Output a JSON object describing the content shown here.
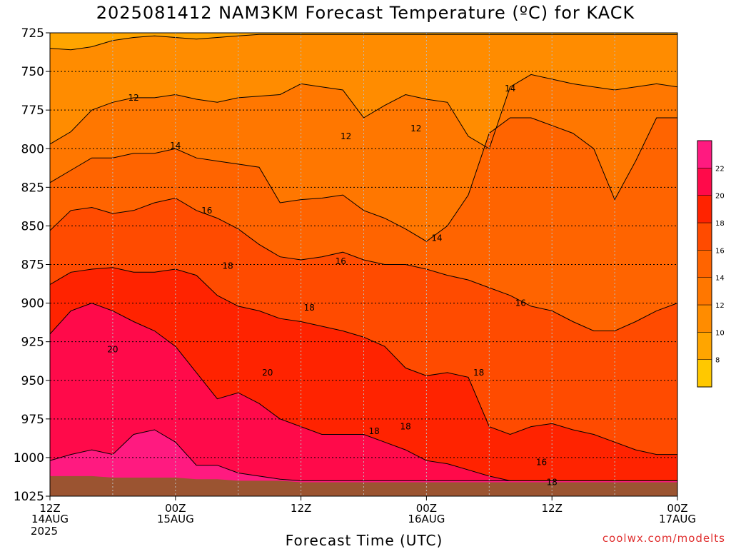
{
  "title": "2025081412 NAM3KM Forecast Temperature (ºC) for KACK",
  "credit": "coolwx.com/modelts",
  "colors": {
    "c6": "#ffc800",
    "c8": "#ffa500",
    "c10": "#ff8c00",
    "c12": "#ff7700",
    "c14": "#ff6400",
    "c16": "#ff4b00",
    "c18": "#ff2300",
    "c20": "#ff0a4a",
    "c22": "#ff1a80",
    "ground": "#9b5431"
  },
  "chart_data": {
    "type": "heatmap",
    "title": "2025081412 NAM3KM Forecast Temperature (ºC) for KACK",
    "xlabel": "Forecast Time (UTC)",
    "ylabel": "",
    "x_hours": [
      0,
      60
    ],
    "x_ticks": [
      {
        "hour": 0,
        "label": "12Z",
        "sub": "14AUG",
        "sub2": "2025"
      },
      {
        "hour": 12,
        "label": "00Z",
        "sub": "15AUG",
        "sub2": ""
      },
      {
        "hour": 24,
        "label": "12Z",
        "sub": "",
        "sub2": ""
      },
      {
        "hour": 36,
        "label": "00Z",
        "sub": "16AUG",
        "sub2": ""
      },
      {
        "hour": 48,
        "label": "12Z",
        "sub": "",
        "sub2": ""
      },
      {
        "hour": 60,
        "label": "00Z",
        "sub": "17AUG",
        "sub2": ""
      }
    ],
    "y_pressure_range": [
      725,
      1025
    ],
    "y_ticks": [
      725,
      750,
      775,
      800,
      825,
      850,
      875,
      900,
      925,
      950,
      975,
      1000,
      1025
    ],
    "colorbar": {
      "min": 6,
      "max": 24,
      "ticks": [
        8,
        10,
        12,
        14,
        16,
        18,
        20,
        22
      ]
    },
    "bands": [
      {
        "temp": 10,
        "top": [
          735,
          736,
          734,
          730,
          728,
          727,
          728,
          729,
          728,
          727,
          726,
          726,
          726,
          726,
          726,
          726,
          726,
          726,
          726,
          726,
          726,
          726,
          726,
          726,
          726,
          726,
          726,
          726,
          726,
          726,
          726
        ]
      },
      {
        "temp": 12,
        "top": [
          797,
          789,
          775,
          770,
          767,
          767,
          765,
          768,
          770,
          767,
          766,
          765,
          758,
          760,
          762,
          780,
          772,
          765,
          768,
          770,
          792,
          800,
          760,
          752,
          755,
          758,
          760,
          762,
          760,
          758,
          760
        ]
      },
      {
        "temp": 14,
        "top": [
          822,
          814,
          806,
          806,
          803,
          803,
          800,
          806,
          808,
          810,
          812,
          835,
          833,
          832,
          830,
          840,
          845,
          852,
          860,
          850,
          830,
          790,
          780,
          780,
          785,
          790,
          800,
          833,
          808,
          780,
          780
        ]
      },
      {
        "temp": 16,
        "top": [
          853,
          840,
          838,
          842,
          840,
          835,
          832,
          840,
          845,
          852,
          862,
          870,
          872,
          870,
          867,
          872,
          875,
          875,
          878,
          882,
          885,
          890,
          895,
          902,
          905,
          912,
          918,
          918,
          912,
          905,
          900
        ]
      },
      {
        "temp": 18,
        "top": [
          888,
          880,
          878,
          877,
          880,
          880,
          878,
          882,
          895,
          902,
          905,
          910,
          912,
          915,
          918,
          922,
          928,
          942,
          947,
          945,
          948,
          980,
          985,
          980,
          978,
          982,
          985,
          990,
          995,
          998,
          998
        ]
      },
      {
        "temp": 20,
        "top": [
          920,
          905,
          900,
          905,
          912,
          918,
          928,
          945,
          962,
          958,
          965,
          975,
          980,
          985,
          985,
          985,
          990,
          995,
          1002,
          1004,
          1008,
          1012,
          1015,
          1015,
          1015,
          1015,
          1015,
          1015,
          1015,
          1015,
          1015
        ]
      },
      {
        "temp": 22,
        "top": [
          1002,
          998,
          995,
          998,
          985,
          982,
          990,
          1005,
          1005,
          1010,
          1012,
          1014,
          1015,
          1015,
          1015,
          1015,
          1015,
          1015,
          1015,
          1015,
          1015,
          1015,
          1015,
          1015,
          1015,
          1015,
          1015,
          1015,
          1015,
          1015,
          1015
        ]
      }
    ],
    "ground_pressure": [
      1012,
      1012,
      1012,
      1013,
      1013,
      1013,
      1013,
      1014,
      1014,
      1015,
      1015,
      1015,
      1016,
      1016,
      1016,
      1016,
      1016,
      1016,
      1016,
      1016,
      1016,
      1016,
      1016,
      1016,
      1016,
      1016,
      1016,
      1016,
      1016,
      1016,
      1016
    ],
    "contour_labels": [
      {
        "text": "12",
        "hour": 8.0,
        "p": 767
      },
      {
        "text": "12",
        "hour": 28.3,
        "p": 792
      },
      {
        "text": "12",
        "hour": 35.0,
        "p": 787
      },
      {
        "text": "14",
        "hour": 12.0,
        "p": 798
      },
      {
        "text": "14",
        "hour": 44.0,
        "p": 761
      },
      {
        "text": "14",
        "hour": 37.0,
        "p": 858
      },
      {
        "text": "16",
        "hour": 15.0,
        "p": 840
      },
      {
        "text": "16",
        "hour": 27.8,
        "p": 873
      },
      {
        "text": "16",
        "hour": 45.0,
        "p": 900
      },
      {
        "text": "16",
        "hour": 47.0,
        "p": 1003
      },
      {
        "text": "18",
        "hour": 17.0,
        "p": 876
      },
      {
        "text": "18",
        "hour": 24.8,
        "p": 903
      },
      {
        "text": "18",
        "hour": 41.0,
        "p": 945
      },
      {
        "text": "18",
        "hour": 34.0,
        "p": 980
      },
      {
        "text": "18",
        "hour": 31.0,
        "p": 983
      },
      {
        "text": "18",
        "hour": 48.0,
        "p": 1016
      },
      {
        "text": "20",
        "hour": 6.0,
        "p": 930
      },
      {
        "text": "20",
        "hour": 20.8,
        "p": 945
      }
    ]
  }
}
